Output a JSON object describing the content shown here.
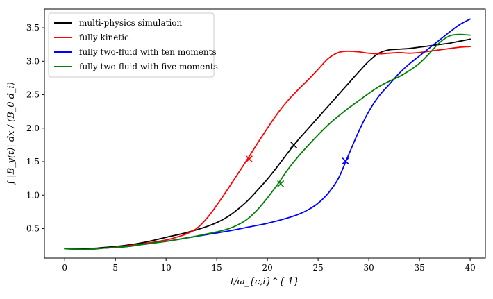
{
  "chart_data": {
    "type": "line",
    "title": "",
    "xlabel": "t/ω_{c,i}^{-1}",
    "ylabel": "∫ |B_y(t)| dx / (B_0 d_i)",
    "xlim": [
      -2,
      41.5
    ],
    "ylim": [
      0.06,
      3.78
    ],
    "xticks": [
      0,
      5,
      10,
      15,
      20,
      25,
      30,
      35,
      40
    ],
    "yticks": [
      0.5,
      1.0,
      1.5,
      2.0,
      2.5,
      3.0,
      3.5
    ],
    "xtick_labels": [
      "0",
      "5",
      "10",
      "15",
      "20",
      "25",
      "30",
      "35",
      "40"
    ],
    "ytick_labels": [
      "0.5",
      "1.0",
      "1.5",
      "2.0",
      "2.5",
      "3.0",
      "3.5"
    ],
    "grid": false,
    "legend_position": "top-left",
    "series": [
      {
        "name": "multi-physics simulation",
        "color": "#000000",
        "x": [
          0,
          2,
          4,
          6,
          8,
          10,
          12,
          14,
          15,
          16,
          17,
          18,
          19,
          20,
          21,
          22,
          23,
          24,
          25,
          26,
          27,
          28,
          29,
          30,
          31,
          32,
          33,
          34,
          35,
          36,
          37,
          38,
          39,
          40
        ],
        "y": [
          0.2,
          0.2,
          0.22,
          0.25,
          0.3,
          0.37,
          0.44,
          0.53,
          0.59,
          0.67,
          0.78,
          0.91,
          1.07,
          1.24,
          1.43,
          1.63,
          1.82,
          1.99,
          2.16,
          2.33,
          2.5,
          2.67,
          2.84,
          3.0,
          3.12,
          3.17,
          3.18,
          3.19,
          3.21,
          3.23,
          3.25,
          3.27,
          3.3,
          3.33
        ],
        "marker": {
          "x": 22.6,
          "y": 1.75
        }
      },
      {
        "name": "fully kinetic",
        "color": "#ff0000",
        "x": [
          0,
          2,
          4,
          6,
          8,
          10,
          11,
          12,
          13,
          14,
          15,
          16,
          17,
          18,
          19,
          20,
          21,
          22,
          23,
          24,
          25,
          26,
          27,
          28,
          29,
          30,
          31,
          32,
          33,
          34,
          35,
          36,
          37,
          38,
          39,
          40
        ],
        "y": [
          0.2,
          0.19,
          0.21,
          0.24,
          0.28,
          0.33,
          0.37,
          0.42,
          0.5,
          0.65,
          0.85,
          1.07,
          1.3,
          1.53,
          1.77,
          2.0,
          2.22,
          2.41,
          2.57,
          2.72,
          2.88,
          3.04,
          3.13,
          3.15,
          3.14,
          3.12,
          3.11,
          3.12,
          3.13,
          3.12,
          3.13,
          3.15,
          3.17,
          3.19,
          3.21,
          3.22
        ],
        "marker": {
          "x": 18.2,
          "y": 1.54
        }
      },
      {
        "name": "fully two-fluid with ten moments",
        "color": "#0000ff",
        "x": [
          0,
          2,
          4,
          6,
          8,
          10,
          12,
          14,
          16,
          18,
          20,
          22,
          23,
          24,
          25,
          26,
          27,
          28,
          29,
          30,
          31,
          32,
          33,
          34,
          35,
          36,
          37,
          38,
          39,
          40
        ],
        "y": [
          0.2,
          0.19,
          0.21,
          0.23,
          0.27,
          0.31,
          0.36,
          0.41,
          0.46,
          0.52,
          0.58,
          0.66,
          0.71,
          0.78,
          0.88,
          1.03,
          1.25,
          1.6,
          1.95,
          2.25,
          2.48,
          2.65,
          2.82,
          2.96,
          3.08,
          3.2,
          3.32,
          3.44,
          3.55,
          3.63
        ],
        "marker": {
          "x": 27.7,
          "y": 1.51
        }
      },
      {
        "name": "fully two-fluid with five moments",
        "color": "#008000",
        "x": [
          0,
          2,
          4,
          6,
          8,
          10,
          12,
          14,
          16,
          17,
          18,
          19,
          20,
          21,
          22,
          23,
          24,
          25,
          26,
          27,
          28,
          29,
          30,
          31,
          32,
          33,
          34,
          35,
          36,
          37,
          38,
          39,
          40
        ],
        "y": [
          0.2,
          0.19,
          0.21,
          0.23,
          0.27,
          0.31,
          0.36,
          0.42,
          0.49,
          0.55,
          0.64,
          0.78,
          0.96,
          1.16,
          1.38,
          1.57,
          1.74,
          1.9,
          2.05,
          2.18,
          2.3,
          2.41,
          2.52,
          2.62,
          2.7,
          2.77,
          2.86,
          2.97,
          3.12,
          3.28,
          3.38,
          3.4,
          3.39
        ],
        "marker": {
          "x": 21.3,
          "y": 1.17
        }
      }
    ]
  }
}
